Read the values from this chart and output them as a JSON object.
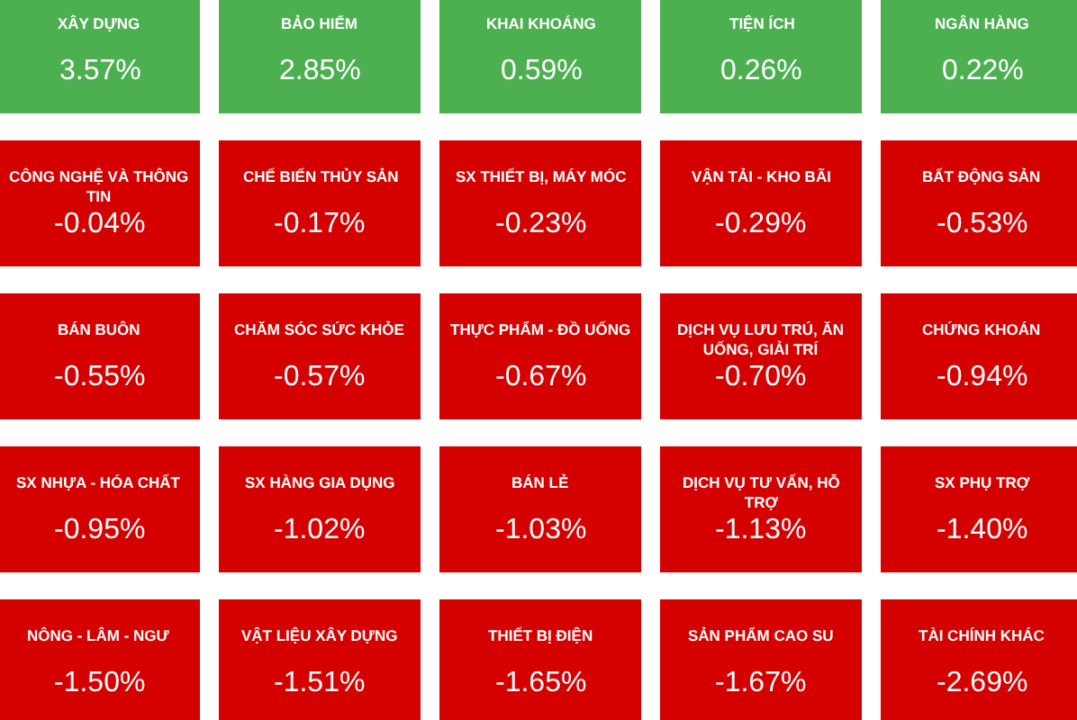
{
  "chart_data": {
    "type": "other",
    "categories": [
      "XÂY DỰNG",
      "BẢO HIỂM",
      "KHAI KHOÁNG",
      "TIỆN ÍCH",
      "NGÂN HÀNG",
      "CÔNG NGHỆ VÀ THÔNG TIN",
      "CHẾ BIẾN THỦY SẢN",
      "SX THIẾT BỊ, MÁY MÓC",
      "VẬN TẢI - KHO BÃI",
      "BẤT ĐỘNG SẢN",
      "BÁN BUÔN",
      "CHĂM SÓC SỨC KHỎE",
      "THỰC PHẨM - ĐỒ UỐNG",
      "DỊCH VỤ LƯU TRÚ, ĂN UỐNG, GIẢI TRÍ",
      "CHỨNG KHOÁN",
      "SX NHỰA - HÓA CHẤT",
      "SX HÀNG GIA DỤNG",
      "BÁN LẺ",
      "DỊCH VỤ TƯ VẤN, HỖ TRỢ",
      "SX PHỤ TRỢ",
      "NÔNG - LÂM - NGƯ",
      "VẬT LIỆU XÂY DỰNG",
      "THIẾT BỊ ĐIỆN",
      "SẢN PHẨM CAO SU",
      "TÀI CHÍNH KHÁC"
    ],
    "values": [
      3.57,
      2.85,
      0.59,
      0.26,
      0.22,
      -0.04,
      -0.17,
      -0.23,
      -0.29,
      -0.53,
      -0.55,
      -0.57,
      -0.67,
      -0.7,
      -0.94,
      -0.95,
      -1.02,
      -1.03,
      -1.13,
      -1.4,
      -1.5,
      -1.51,
      -1.65,
      -1.67,
      -2.69
    ],
    "value_labels": [
      "3.57%",
      "2.85%",
      "0.59%",
      "0.26%",
      "0.22%",
      "-0.04%",
      "-0.17%",
      "-0.23%",
      "-0.29%",
      "-0.53%",
      "-0.55%",
      "-0.57%",
      "-0.67%",
      "-0.70%",
      "-0.94%",
      "-0.95%",
      "-1.02%",
      "-1.03%",
      "-1.13%",
      "-1.40%",
      "-1.50%",
      "-1.51%",
      "-1.65%",
      "-1.67%",
      "-2.69%"
    ],
    "colors": [
      "#4caf50",
      "#4caf50",
      "#4caf50",
      "#4caf50",
      "#4caf50",
      "#d50000",
      "#d50000",
      "#d50000",
      "#d50000",
      "#d50000",
      "#d50000",
      "#d50000",
      "#d50000",
      "#d50000",
      "#d50000",
      "#d50000",
      "#d50000",
      "#d50000",
      "#d50000",
      "#d50000",
      "#d50000",
      "#d50000",
      "#d50000",
      "#d50000",
      "#d50000"
    ]
  }
}
